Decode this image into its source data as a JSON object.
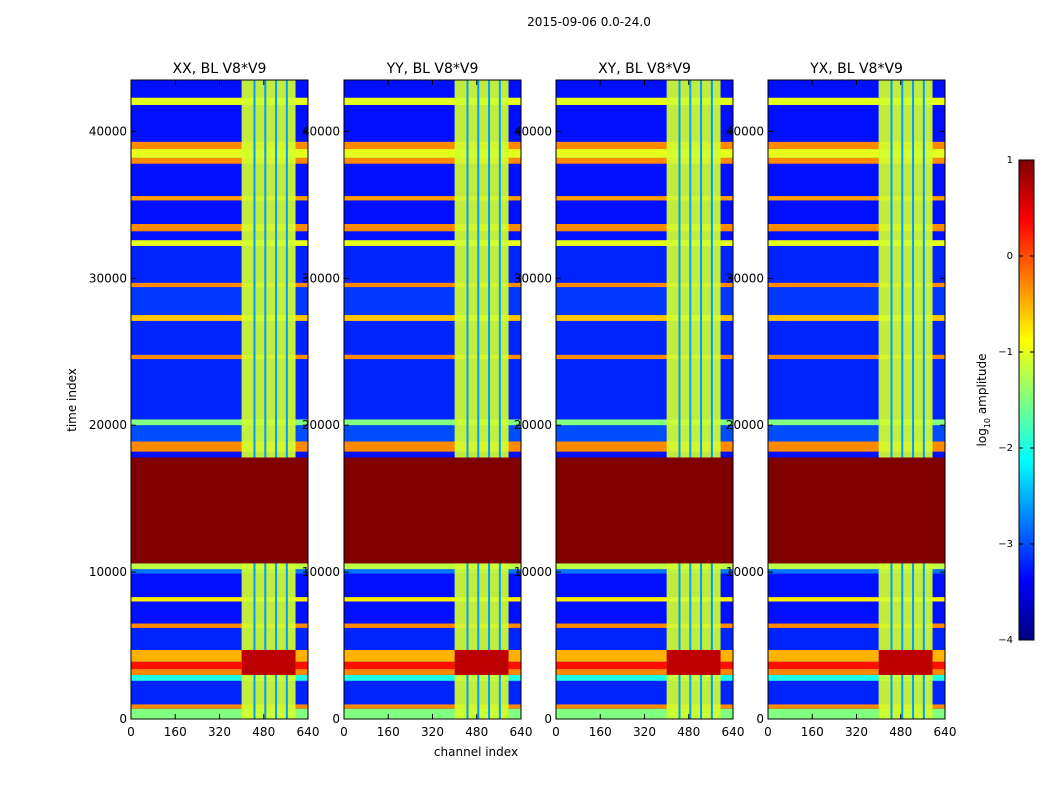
{
  "suptitle": "2015-09-06 0.0-24.0",
  "chart_data": {
    "type": "heatmap",
    "xlabel": "channel index",
    "ylabel": "time index",
    "xlim": [
      0,
      640
    ],
    "ylim": [
      0,
      43500
    ],
    "xticks": [
      0,
      160,
      320,
      480,
      640
    ],
    "yticks": [
      0,
      10000,
      20000,
      30000,
      40000
    ],
    "panels": [
      {
        "title": "XX, BL V8*V9",
        "product": "XX"
      },
      {
        "title": "YY, BL V8*V9",
        "product": "YY"
      },
      {
        "title": "XY, BL V8*V9",
        "product": "XY"
      },
      {
        "title": "YX, BL V8*V9",
        "product": "YX"
      }
    ],
    "colorbar": {
      "label": "log10 amplitude",
      "label_main": "log",
      "label_sub": "10",
      "label_tail": " amplitude",
      "range": [
        -4,
        1
      ],
      "ticks": [
        1,
        0,
        -1,
        -2,
        -3,
        -4
      ],
      "tick_labels": [
        "1",
        "0",
        "−1",
        "−2",
        "−3",
        "−4"
      ],
      "colormap": "jet"
    },
    "flagged_band_rows": [
      10600,
      17800
    ],
    "rfi_channels": [
      400,
      595
    ],
    "rfi_bright_rows": [
      3000,
      4700
    ],
    "rows": [
      {
        "t0": 0,
        "t1": 700,
        "level": -1.5
      },
      {
        "t0": 700,
        "t1": 1000,
        "level": -0.3
      },
      {
        "t0": 1000,
        "t1": 2600,
        "level": -3.2
      },
      {
        "t0": 2600,
        "t1": 3000,
        "level": -2.0
      },
      {
        "t0": 3000,
        "t1": 3400,
        "level": -0.3
      },
      {
        "t0": 3400,
        "t1": 3900,
        "level": 0.3
      },
      {
        "t0": 3900,
        "t1": 4700,
        "level": -0.5
      },
      {
        "t0": 4700,
        "t1": 6200,
        "level": -3.2
      },
      {
        "t0": 6200,
        "t1": 6500,
        "level": -0.3
      },
      {
        "t0": 6500,
        "t1": 8000,
        "level": -3.3
      },
      {
        "t0": 8000,
        "t1": 8300,
        "level": -0.8
      },
      {
        "t0": 8300,
        "t1": 9900,
        "level": -3.3
      },
      {
        "t0": 9900,
        "t1": 10200,
        "level": -2.8
      },
      {
        "t0": 10200,
        "t1": 10600,
        "level": -1.2
      },
      {
        "t0": 10600,
        "t1": 17800,
        "level": 1.0
      },
      {
        "t0": 17800,
        "t1": 18200,
        "level": -3.3
      },
      {
        "t0": 18200,
        "t1": 18900,
        "level": -0.3
      },
      {
        "t0": 18900,
        "t1": 20000,
        "level": -3.0
      },
      {
        "t0": 20000,
        "t1": 20400,
        "level": -1.5
      },
      {
        "t0": 20400,
        "t1": 24500,
        "level": -3.2
      },
      {
        "t0": 24500,
        "t1": 24800,
        "level": -0.3
      },
      {
        "t0": 24800,
        "t1": 27100,
        "level": -3.2
      },
      {
        "t0": 27100,
        "t1": 27500,
        "level": -0.6
      },
      {
        "t0": 27500,
        "t1": 29400,
        "level": -3.1
      },
      {
        "t0": 29400,
        "t1": 29700,
        "level": -0.3
      },
      {
        "t0": 29700,
        "t1": 32200,
        "level": -3.2
      },
      {
        "t0": 32200,
        "t1": 32600,
        "level": -1.0
      },
      {
        "t0": 32600,
        "t1": 33200,
        "level": -3.3
      },
      {
        "t0": 33200,
        "t1": 33700,
        "level": -0.3
      },
      {
        "t0": 33700,
        "t1": 35300,
        "level": -3.3
      },
      {
        "t0": 35300,
        "t1": 35600,
        "level": -0.4
      },
      {
        "t0": 35600,
        "t1": 37800,
        "level": -3.3
      },
      {
        "t0": 37800,
        "t1": 38200,
        "level": -0.3
      },
      {
        "t0": 38200,
        "t1": 38800,
        "level": -1.0
      },
      {
        "t0": 38800,
        "t1": 39300,
        "level": -0.3
      },
      {
        "t0": 39300,
        "t1": 41800,
        "level": -3.3
      },
      {
        "t0": 41800,
        "t1": 42300,
        "level": -1.0
      },
      {
        "t0": 42300,
        "t1": 43500,
        "level": -3.3
      }
    ]
  }
}
